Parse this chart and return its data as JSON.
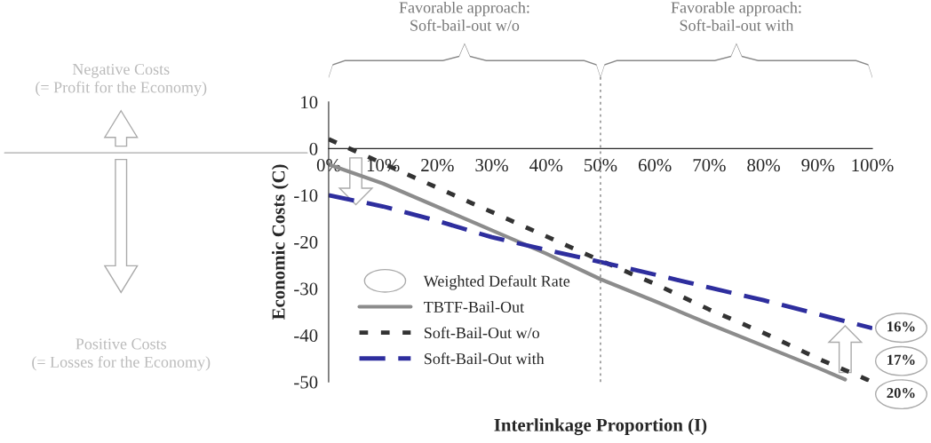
{
  "chart_data": {
    "type": "line",
    "xlabel": "Interlinkage Proportion (I)",
    "ylabel": "Economic Costs (C)",
    "x": [
      0,
      10,
      20,
      30,
      40,
      50,
      60,
      70,
      80,
      90,
      95,
      100
    ],
    "series": [
      {
        "name": "TBTF-Bail-Out",
        "color": "#8c8c8c",
        "line_style": "solid",
        "values": [
          -3.4,
          -7.5,
          -12.5,
          -17.5,
          -22.5,
          -28,
          -32.7,
          -37.6,
          -42.3,
          -47,
          -49.5,
          null
        ]
      },
      {
        "name": "Soft-Bail-Out w/o",
        "color": "#333333",
        "line_style": "dotted",
        "values": [
          2,
          -3.2,
          -8.4,
          -13.6,
          -18.8,
          -24,
          -29,
          -34.5,
          -39.5,
          -45,
          -47.5,
          -50
        ]
      },
      {
        "name": "Soft-Bail-Out with",
        "color": "#2e2e9e",
        "line_style": "dashed",
        "values": [
          -10,
          -12.4,
          -15.5,
          -19,
          -21.7,
          -24.3,
          -27,
          -29.8,
          -32.5,
          -35.5,
          -37,
          -38.5
        ]
      }
    ],
    "xlim": [
      0,
      100
    ],
    "ylim": [
      -50,
      10
    ],
    "xticks": [
      {
        "value": 0,
        "label": "0%"
      },
      {
        "value": 10,
        "label": "10%"
      },
      {
        "value": 20,
        "label": "20%"
      },
      {
        "value": 30,
        "label": "30%"
      },
      {
        "value": 40,
        "label": "40%"
      },
      {
        "value": 50,
        "label": "50%"
      },
      {
        "value": 60,
        "label": "60%"
      },
      {
        "value": 70,
        "label": "70%"
      },
      {
        "value": 80,
        "label": "80%"
      },
      {
        "value": 90,
        "label": "90%"
      },
      {
        "value": 100,
        "label": "100%"
      }
    ],
    "yticks": [
      -50,
      -40,
      -30,
      -20,
      -10,
      0,
      10
    ],
    "ref_lines": [
      {
        "axis": "x",
        "value": 50,
        "color": "#808080",
        "line_style": "dotted"
      }
    ],
    "legend": "bottom left",
    "grid": false,
    "annotations": [
      "Favorable approach:\nSoft-bail-out w/o",
      "Favorable approach:\nSoft-bail-out with",
      "Negative Costs\n(= Profit for the Economy)",
      "Positive Costs\n(= Losses for the Economy)",
      "Weighted Default Rate",
      "16%",
      "17%",
      "20%"
    ]
  }
}
